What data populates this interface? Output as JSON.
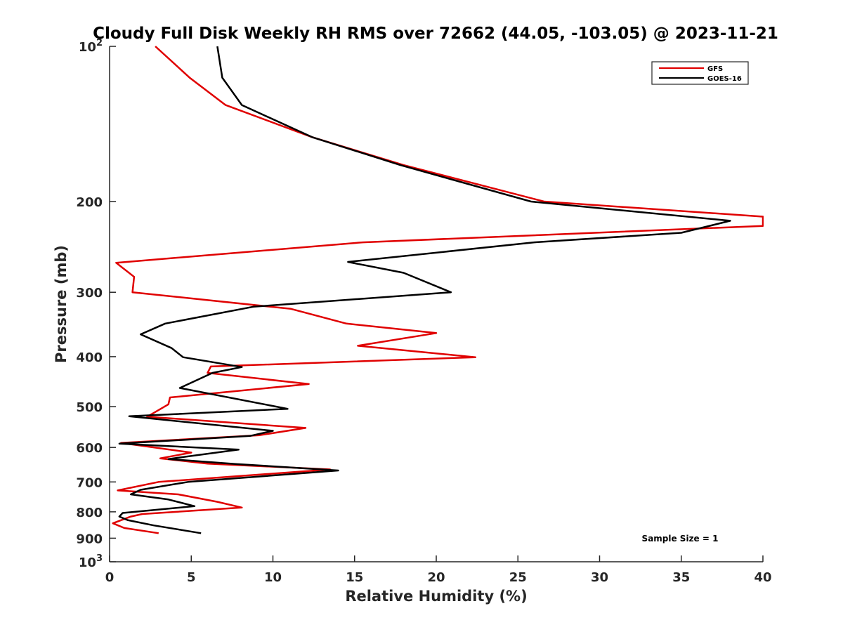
{
  "chart_data": {
    "type": "line",
    "title": "Cloudy Full Disk Weekly RH RMS over 72662 (44.05, -103.05) @ 2023-11-21",
    "xlabel": "Relative Humidity (%)",
    "ylabel": "Pressure (mb)",
    "xlim": [
      0,
      40
    ],
    "ylim": [
      100,
      1000
    ],
    "y_scale": "log",
    "y_reversed": true,
    "x_ticks": [
      "0",
      "5",
      "10",
      "15",
      "20",
      "25",
      "30",
      "35",
      "40"
    ],
    "y_ticks": [
      {
        "value": 100,
        "base": "10",
        "exp": "2"
      },
      {
        "value": 200,
        "label": "200"
      },
      {
        "value": 300,
        "label": "300"
      },
      {
        "value": 400,
        "label": "400"
      },
      {
        "value": 500,
        "label": "500"
      },
      {
        "value": 600,
        "label": "600"
      },
      {
        "value": 700,
        "label": "700"
      },
      {
        "value": 800,
        "label": "800"
      },
      {
        "value": 900,
        "label": "900"
      },
      {
        "value": 1000,
        "base": "10",
        "exp": "3"
      }
    ],
    "legend_position": "top-right",
    "annotation": "Sample Size = 1",
    "series": [
      {
        "name": "GFS",
        "color": "#e00000",
        "points": [
          [
            2.8,
            100
          ],
          [
            4.9,
            115
          ],
          [
            7.1,
            130
          ],
          [
            12.4,
            150
          ],
          [
            18,
            170
          ],
          [
            26.6,
            200
          ],
          [
            40,
            214
          ],
          [
            40,
            223
          ],
          [
            15.5,
            240
          ],
          [
            0.4,
            263
          ],
          [
            1.5,
            280
          ],
          [
            1.4,
            300
          ],
          [
            11.1,
            323
          ],
          [
            14.5,
            345
          ],
          [
            20,
            360
          ],
          [
            15.2,
            381
          ],
          [
            22.4,
            401
          ],
          [
            6.2,
            418
          ],
          [
            6,
            430
          ],
          [
            12.2,
            452
          ],
          [
            3.7,
            480
          ],
          [
            3.6,
            495
          ],
          [
            2.3,
            523
          ],
          [
            12,
            550
          ],
          [
            9.2,
            568
          ],
          [
            0.7,
            588
          ],
          [
            5,
            614
          ],
          [
            3.1,
            630
          ],
          [
            6,
            645
          ],
          [
            13.5,
            662
          ],
          [
            3,
            700
          ],
          [
            0.5,
            727
          ],
          [
            4.2,
            740
          ],
          [
            6.6,
            765
          ],
          [
            8.1,
            785
          ],
          [
            2,
            808
          ],
          [
            1.3,
            817
          ],
          [
            0.2,
            842
          ],
          [
            0.9,
            860
          ],
          [
            3,
            880
          ]
        ]
      },
      {
        "name": "GOES-16",
        "color": "#000000",
        "points": [
          [
            6.6,
            100
          ],
          [
            6.9,
            115
          ],
          [
            8.1,
            130
          ],
          [
            12.4,
            150
          ],
          [
            17.8,
            170
          ],
          [
            25.8,
            200
          ],
          [
            38,
            218
          ],
          [
            35,
            230
          ],
          [
            26,
            240
          ],
          [
            14.6,
            262
          ],
          [
            18,
            275
          ],
          [
            20.9,
            300
          ],
          [
            8.8,
            320
          ],
          [
            3.4,
            345
          ],
          [
            1.9,
            362
          ],
          [
            3.8,
            385
          ],
          [
            4.5,
            401
          ],
          [
            8.1,
            419
          ],
          [
            6.3,
            430
          ],
          [
            4.3,
            460
          ],
          [
            10.9,
            505
          ],
          [
            1.2,
            522
          ],
          [
            10,
            557
          ],
          [
            8.6,
            570
          ],
          [
            0.6,
            590
          ],
          [
            7.9,
            606
          ],
          [
            3.6,
            632
          ],
          [
            7.7,
            646
          ],
          [
            14,
            665
          ],
          [
            4.8,
            700
          ],
          [
            1.9,
            725
          ],
          [
            1.3,
            740
          ],
          [
            3.6,
            757
          ],
          [
            5.2,
            780
          ],
          [
            0.8,
            804
          ],
          [
            0.6,
            817
          ],
          [
            1.1,
            830
          ],
          [
            2.7,
            850
          ],
          [
            5.6,
            880
          ]
        ]
      }
    ]
  }
}
